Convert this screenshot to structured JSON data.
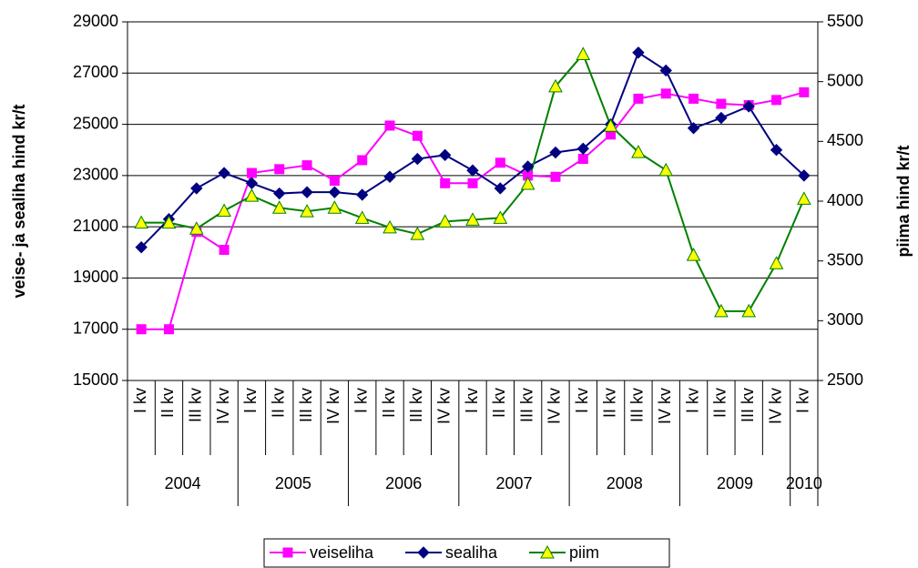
{
  "chart_data": {
    "type": "line",
    "y_label": "veise- ja sealiha hind kr/t",
    "y2_label": "piima hind kr/t",
    "groups": [
      {
        "name": "2004",
        "categories": [
          "I kv",
          "II kv",
          "III kv",
          "IV kv"
        ]
      },
      {
        "name": "2005",
        "categories": [
          "I kv",
          "II kv",
          "III kv",
          "IV kv"
        ]
      },
      {
        "name": "2006",
        "categories": [
          "I kv",
          "II kv",
          "III kv",
          "IV kv"
        ]
      },
      {
        "name": "2007",
        "categories": [
          "I kv",
          "II kv",
          "III kv",
          "IV kv"
        ]
      },
      {
        "name": "2008",
        "categories": [
          "I kv",
          "II kv",
          "III kv",
          "IV kv"
        ]
      },
      {
        "name": "2009",
        "categories": [
          "I kv",
          "II kv",
          "III kv",
          "IV kv"
        ]
      },
      {
        "name": "2010",
        "categories": [
          "I kv"
        ]
      }
    ],
    "series": [
      {
        "name": "veiseliha",
        "color": "#ff00ff",
        "marker": "square",
        "marker_fill": "#ff00ff",
        "axis": "y",
        "values": [
          17000,
          17000,
          20800,
          20100,
          23100,
          23250,
          23400,
          22800,
          23600,
          24950,
          24550,
          22700,
          22700,
          23500,
          23000,
          22950,
          23650,
          24600,
          26000,
          26200,
          26000,
          25800,
          25750,
          25950,
          26250
        ]
      },
      {
        "name": "sealiha",
        "color": "#000080",
        "marker": "diamond",
        "marker_fill": "#000080",
        "axis": "y",
        "values": [
          20200,
          21300,
          22500,
          23100,
          22700,
          22300,
          22350,
          22350,
          22250,
          22950,
          23650,
          23800,
          23200,
          22500,
          23350,
          23900,
          24050,
          25000,
          27800,
          27100,
          24850,
          25250,
          25700,
          24000,
          23000
        ]
      },
      {
        "name": "piim",
        "color": "#008000",
        "marker": "triangle",
        "marker_fill": "#ffff00",
        "axis": "y2",
        "values": [
          3820,
          3820,
          3770,
          3920,
          4045,
          3945,
          3915,
          3945,
          3860,
          3780,
          3725,
          3830,
          3845,
          3860,
          4145,
          4960,
          5230,
          4630,
          4410,
          4260,
          3550,
          3080,
          3080,
          3480,
          4020
        ]
      }
    ],
    "ylim": [
      15000,
      29000
    ],
    "yticks": [
      15000,
      17000,
      19000,
      21000,
      23000,
      25000,
      27000,
      29000
    ],
    "y2lim": [
      2500,
      5500
    ],
    "y2ticks": [
      2500,
      3000,
      3500,
      4000,
      4500,
      5000,
      5500
    ],
    "grid": true,
    "legend": "bottom"
  }
}
